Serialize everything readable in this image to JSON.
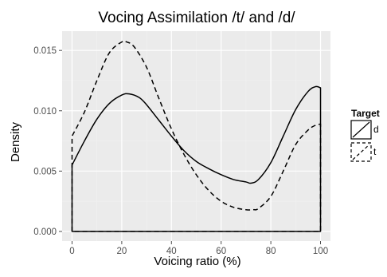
{
  "chart_data": {
    "type": "area",
    "title": "Vocing Assimilation /t/ and /d/",
    "xlabel": "Voicing ratio (%)",
    "ylabel": "Density",
    "xlim": [
      -4,
      104
    ],
    "ylim": [
      -0.0008,
      0.0166
    ],
    "x_ticks": [
      0,
      20,
      40,
      60,
      80,
      100
    ],
    "y_ticks": [
      0.0,
      0.005,
      0.01,
      0.015
    ],
    "y_tick_labels": [
      "0.000",
      "0.005",
      "0.010",
      "0.015"
    ],
    "grid": true,
    "legend": {
      "title": "Target",
      "position": "right"
    },
    "series": [
      {
        "name": "d",
        "line_style": "solid",
        "x": [
          0,
          5,
          10,
          15,
          20,
          23,
          27,
          30,
          35,
          40,
          45,
          50,
          55,
          60,
          65,
          70,
          72,
          75,
          80,
          85,
          90,
          95,
          98,
          100
        ],
        "y": [
          0.0055,
          0.0075,
          0.0093,
          0.0106,
          0.0113,
          0.0114,
          0.0111,
          0.0105,
          0.0092,
          0.0079,
          0.0067,
          0.0058,
          0.0052,
          0.0047,
          0.0043,
          0.0041,
          0.004,
          0.0043,
          0.0057,
          0.0079,
          0.0101,
          0.0116,
          0.012,
          0.0119
        ]
      },
      {
        "name": "t",
        "line_style": "dashed",
        "x": [
          0,
          5,
          10,
          15,
          20,
          22,
          25,
          30,
          35,
          40,
          45,
          50,
          55,
          60,
          65,
          70,
          73,
          75,
          80,
          85,
          90,
          95,
          98,
          100
        ],
        "y": [
          0.0079,
          0.0099,
          0.0125,
          0.0148,
          0.0157,
          0.0157,
          0.0153,
          0.0136,
          0.011,
          0.0085,
          0.0064,
          0.0047,
          0.0034,
          0.0025,
          0.002,
          0.0018,
          0.0018,
          0.0019,
          0.0029,
          0.005,
          0.0072,
          0.0084,
          0.0088,
          0.0089
        ]
      }
    ]
  },
  "colors": {
    "panel_background": "#ebebeb",
    "grid_major": "#ffffff",
    "grid_minor": "#f2f2f2",
    "line": "#000000",
    "tick_label": "#4d4d4d"
  }
}
